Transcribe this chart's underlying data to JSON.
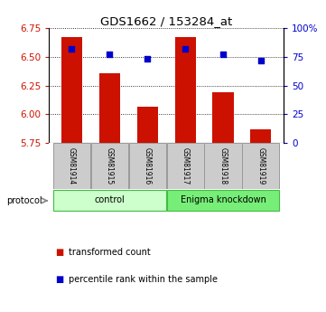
{
  "title": "GDS1662 / 153284_at",
  "samples": [
    "GSM81914",
    "GSM81915",
    "GSM81916",
    "GSM81917",
    "GSM81918",
    "GSM81919"
  ],
  "bar_values": [
    6.67,
    6.36,
    6.07,
    6.67,
    6.19,
    5.87
  ],
  "dot_values": [
    82,
    77,
    73,
    82,
    77,
    72
  ],
  "ylim_left": [
    5.75,
    6.75
  ],
  "ylim_right": [
    0,
    100
  ],
  "yticks_left": [
    5.75,
    6.0,
    6.25,
    6.5,
    6.75
  ],
  "yticks_right": [
    0,
    25,
    50,
    75,
    100
  ],
  "ytick_labels_right": [
    "0",
    "25",
    "50",
    "75",
    "100%"
  ],
  "bar_color": "#cc1100",
  "dot_color": "#0000cc",
  "bar_bottom": 5.75,
  "groups": [
    {
      "label": "control",
      "indices": [
        0,
        1,
        2
      ],
      "color": "#ccffcc"
    },
    {
      "label": "Enigma knockdown",
      "indices": [
        3,
        4,
        5
      ],
      "color": "#77ee77"
    }
  ],
  "protocol_label": "protocol",
  "legend_items": [
    {
      "label": "transformed count",
      "color": "#cc1100"
    },
    {
      "label": "percentile rank within the sample",
      "color": "#0000cc"
    }
  ],
  "gridline_color": "#000000",
  "tick_color_left": "#cc1100",
  "tick_color_right": "#0000cc",
  "sample_box_color": "#cccccc",
  "background_color": "#ffffff",
  "group_edge_color": "#44bb44"
}
